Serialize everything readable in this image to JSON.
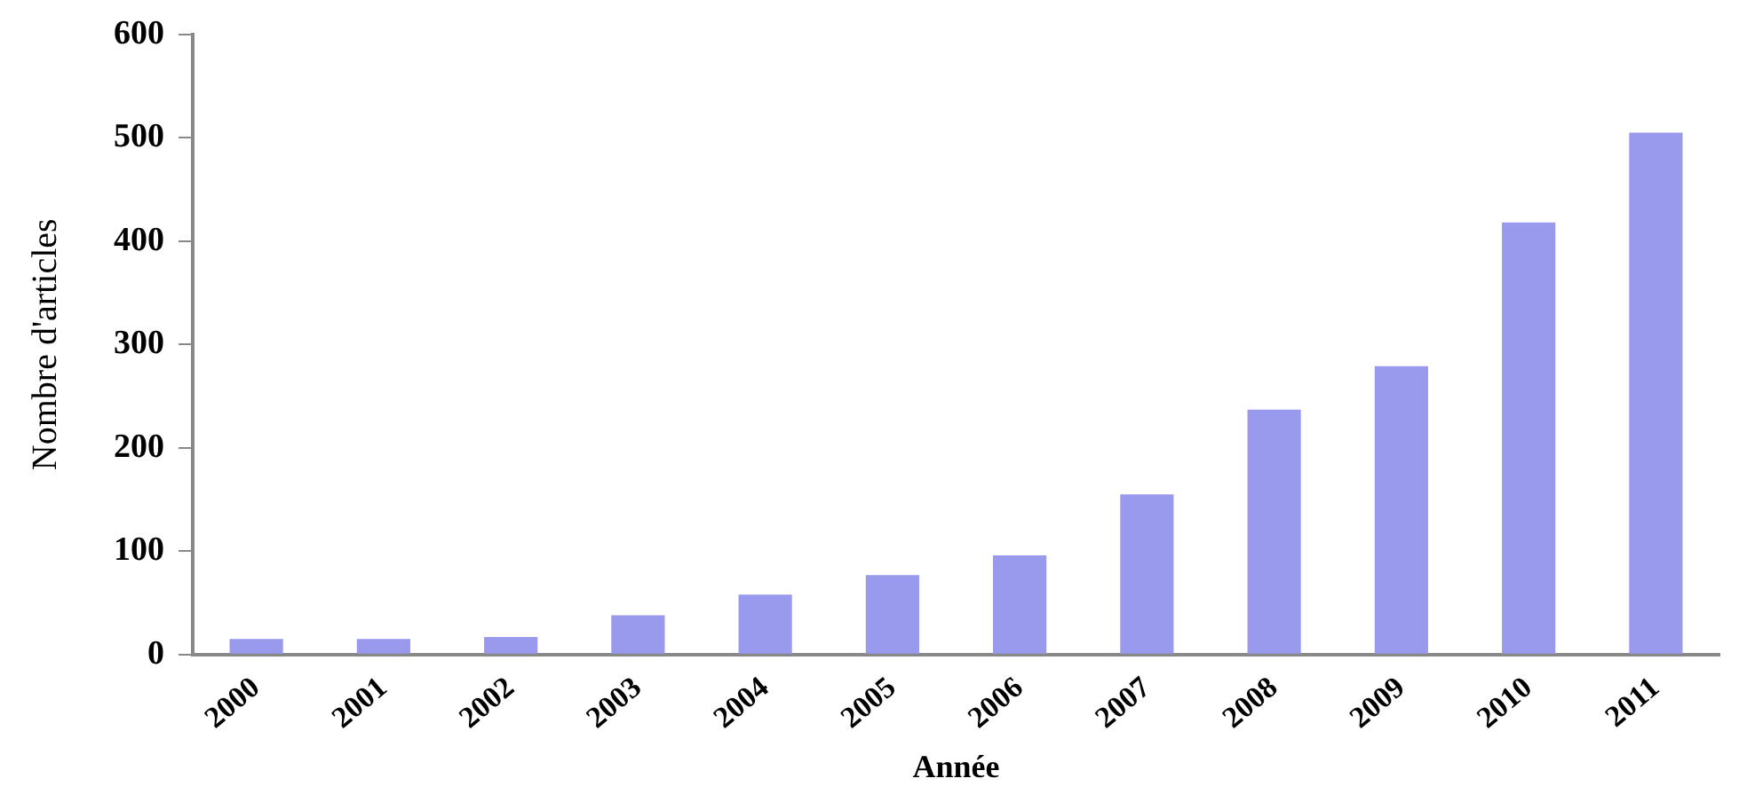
{
  "chart_data": {
    "type": "bar",
    "xlabel": "Année",
    "ylabel": "Nombre d'articles",
    "categories": [
      "2000",
      "2001",
      "2002",
      "2003",
      "2004",
      "2005",
      "2006",
      "2007",
      "2008",
      "2009",
      "2010",
      "2011"
    ],
    "values": [
      15,
      15,
      17,
      38,
      58,
      77,
      96,
      155,
      237,
      279,
      418,
      505
    ],
    "color": "#9999ee",
    "ylim": [
      0,
      600
    ],
    "yticks": [
      0,
      100,
      200,
      300,
      400,
      500,
      600
    ],
    "grid": false,
    "legend": false
  }
}
